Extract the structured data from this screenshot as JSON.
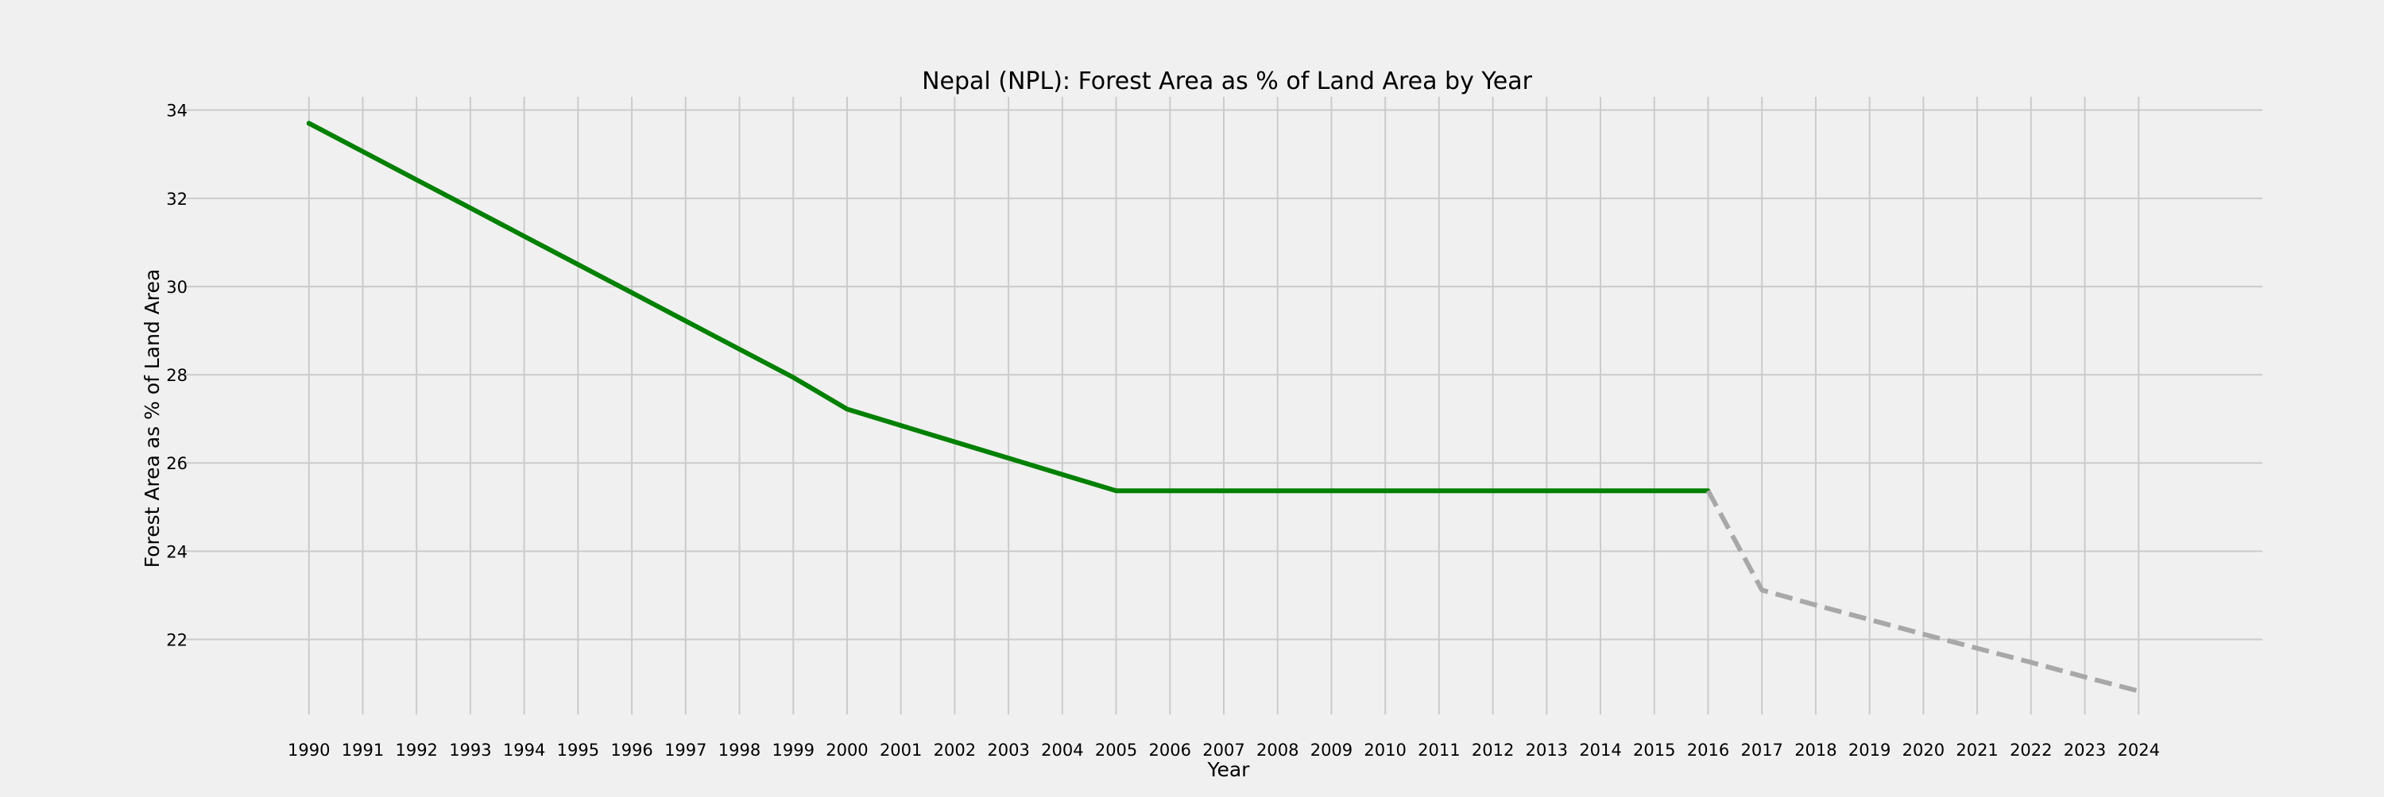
{
  "chart_data": {
    "type": "line",
    "title": "Nepal (NPL): Forest Area as % of Land Area by Year",
    "xlabel": "Year",
    "ylabel": "Forest Area as % of Land Area",
    "x_ticks": [
      "1990",
      "1991",
      "1992",
      "1993",
      "1994",
      "1995",
      "1996",
      "1997",
      "1998",
      "1999",
      "2000",
      "2001",
      "2002",
      "2003",
      "2004",
      "2005",
      "2006",
      "2007",
      "2008",
      "2009",
      "2010",
      "2011",
      "2012",
      "2013",
      "2014",
      "2015",
      "2016",
      "2017",
      "2018",
      "2019",
      "2020",
      "2021",
      "2022",
      "2023",
      "2024"
    ],
    "y_ticks": [
      22,
      24,
      26,
      28,
      30,
      32,
      34
    ],
    "xlim": [
      1987.7,
      2026.3
    ],
    "ylim": [
      20.3,
      34.3
    ],
    "grid": true,
    "series": [
      {
        "style": "solid",
        "color": "#008000",
        "x": [
          1990,
          1991,
          1992,
          1993,
          1994,
          1995,
          1996,
          1997,
          1998,
          1999,
          2000,
          2001,
          2002,
          2003,
          2004,
          2005,
          2006,
          2007,
          2008,
          2009,
          2010,
          2011,
          2012,
          2013,
          2014,
          2015,
          2016
        ],
        "y": [
          33.7,
          33.06,
          32.42,
          31.78,
          31.14,
          30.5,
          29.86,
          29.22,
          28.58,
          27.94,
          27.22,
          26.85,
          26.48,
          26.11,
          25.74,
          25.37,
          25.37,
          25.37,
          25.37,
          25.37,
          25.37,
          25.37,
          25.37,
          25.37,
          25.37,
          25.37,
          25.37
        ]
      },
      {
        "style": "dashed",
        "color": "#a8a8a8",
        "x": [
          2016,
          2017,
          2018,
          2019,
          2020,
          2021,
          2022,
          2023,
          2024
        ],
        "y": [
          25.37,
          23.12,
          22.78,
          22.45,
          22.12,
          21.8,
          21.48,
          21.15,
          20.83
        ]
      }
    ]
  }
}
